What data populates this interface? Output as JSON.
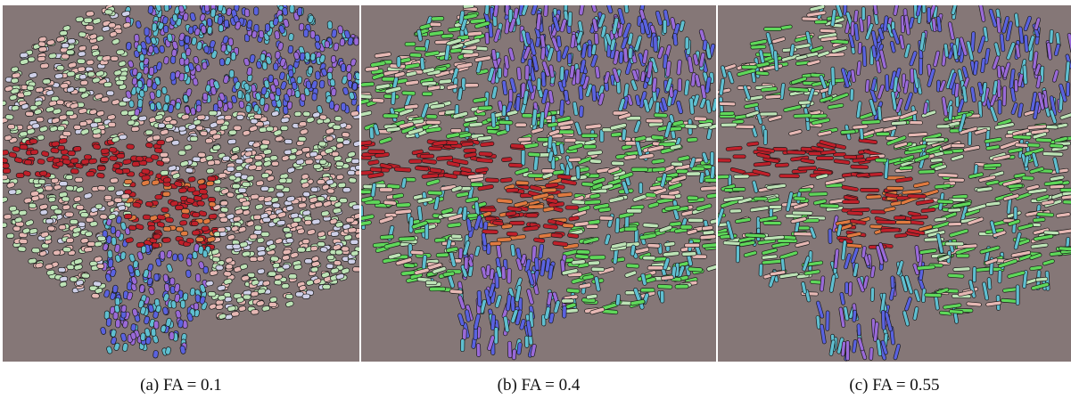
{
  "figure": {
    "background_color": "#857777",
    "panels": [
      {
        "id": "a",
        "caption": "(a) FA = 0.1",
        "fa_threshold": 0.1
      },
      {
        "id": "b",
        "caption": "(b) FA = 0.4",
        "fa_threshold": 0.4
      },
      {
        "id": "c",
        "caption": "(c) FA = 0.55",
        "fa_threshold": 0.55
      }
    ],
    "colors": {
      "red": "#c0202a",
      "green": "#5fd85a",
      "blue": "#5a62e0",
      "pink": "#e6b8b4",
      "pale_green": "#bde3b6",
      "violet": "#9a6ad8",
      "cyan": "#5fbfd0"
    }
  }
}
